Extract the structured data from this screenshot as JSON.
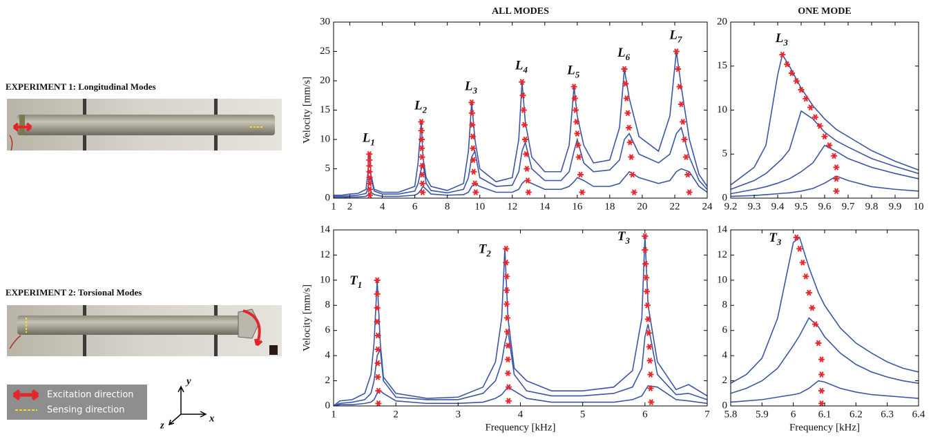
{
  "left_panel": {
    "experiment1": "EXPERIMENT 1: Longitudinal Modes",
    "experiment2": "EXPERIMENT 2: Torsional Modes",
    "legend": [
      "Excitation direction",
      "Sensing direction"
    ],
    "axes": {
      "y": "y",
      "x": "x",
      "z": "z"
    }
  },
  "chart_data": [
    {
      "type": "line",
      "title": "ALL MODES",
      "y_label": "Velocity [mm/s]",
      "xlim": [
        1,
        24
      ],
      "xticks": [
        1,
        2,
        4,
        6,
        8,
        10,
        12,
        14,
        16,
        18,
        20,
        22,
        24
      ],
      "ylim": [
        0,
        30
      ],
      "yticks": [
        0,
        5,
        10,
        15,
        20,
        25,
        30
      ],
      "x": [
        1,
        1.5,
        2,
        2.5,
        3,
        3.1,
        3.2,
        3.3,
        3.5,
        4,
        5,
        6,
        6.2,
        6.4,
        6.5,
        6.7,
        7,
        8,
        9,
        9.3,
        9.5,
        9.7,
        10,
        11,
        12,
        12.4,
        12.6,
        12.8,
        13.2,
        14,
        15,
        15.5,
        15.8,
        16,
        16.4,
        17,
        18,
        18.6,
        18.9,
        19.2,
        19.8,
        21,
        21.7,
        22.1,
        22.4,
        22.9,
        23.5,
        24
      ],
      "series": [
        {
          "color": "#3b55a5",
          "values": [
            0.5,
            0.5,
            0.7,
            0.8,
            1.5,
            4,
            7.5,
            4,
            1.5,
            1,
            1,
            2,
            6,
            13,
            7,
            3.5,
            2,
            1.3,
            2.5,
            8,
            16.3,
            10,
            5,
            2.8,
            3.5,
            10,
            19.8,
            13,
            7,
            4.5,
            4.5,
            9,
            19,
            14,
            9,
            6,
            6.5,
            12,
            22,
            17,
            10.5,
            8,
            14,
            25,
            19,
            10,
            4,
            2
          ]
        },
        {
          "color": "#3b55a5",
          "values": [
            0.3,
            0.3,
            0.4,
            0.5,
            0.8,
            1.5,
            3,
            3.5,
            1.2,
            0.7,
            0.7,
            1.2,
            2.5,
            5,
            6,
            2.5,
            1.3,
            0.9,
            1.5,
            3.5,
            7,
            8,
            3.5,
            2,
            2.2,
            4.5,
            8,
            9.5,
            5,
            3,
            3,
            4.5,
            8,
            10,
            6,
            4.5,
            4.8,
            6.5,
            10,
            11,
            7.5,
            6,
            7.5,
            11,
            12,
            7,
            3,
            1.5
          ]
        },
        {
          "color": "#3b55a5",
          "values": [
            0.1,
            0.1,
            0.2,
            0.2,
            0.3,
            0.5,
            0.8,
            1,
            0.6,
            0.3,
            0.3,
            0.5,
            0.8,
            1.5,
            2,
            1.5,
            0.7,
            0.5,
            0.6,
            1,
            2,
            2.5,
            2,
            1,
            1,
            1.5,
            2.5,
            3,
            2.5,
            1.5,
            1.5,
            2,
            2.8,
            3.5,
            3,
            2,
            2,
            2.5,
            3.5,
            4.5,
            3.5,
            2.5,
            3,
            4.5,
            5,
            4.5,
            2,
            1
          ]
        }
      ],
      "marker_color": "#e8262b",
      "modes": [
        {
          "label": "L",
          "sub": "1",
          "x": [
            3.2,
            3.2,
            3.21,
            3.21,
            3.22,
            3.22,
            3.23,
            3.23
          ],
          "values": [
            7.5,
            6.5,
            5.5,
            4.5,
            3.5,
            2.5,
            1.5,
            0.5
          ]
        },
        {
          "label": "L",
          "sub": "2",
          "x": [
            6.4,
            6.41,
            6.42,
            6.43,
            6.44,
            6.45,
            6.46,
            6.47,
            6.48
          ],
          "values": [
            13,
            11.5,
            10,
            8.5,
            7,
            5.5,
            4,
            2.5,
            1
          ]
        },
        {
          "label": "L",
          "sub": "3",
          "x": [
            9.5,
            9.52,
            9.54,
            9.56,
            9.58,
            9.6,
            9.62,
            9.7,
            9.75
          ],
          "values": [
            16.3,
            14.5,
            12.5,
            10.5,
            8.5,
            6.5,
            4.5,
            2.5,
            1
          ]
        },
        {
          "label": "L",
          "sub": "4",
          "x": [
            12.6,
            12.65,
            12.7,
            12.75,
            12.8,
            12.85,
            12.9,
            12.95,
            13
          ],
          "values": [
            19.8,
            17.5,
            15,
            12.5,
            10,
            7.5,
            5,
            3,
            1
          ]
        },
        {
          "label": "L",
          "sub": "5",
          "x": [
            15.8,
            15.85,
            15.9,
            15.95,
            16,
            16.05,
            16.1,
            16.2,
            16.3
          ],
          "values": [
            19,
            17,
            15,
            13,
            11,
            9,
            7,
            4,
            1
          ]
        },
        {
          "label": "L",
          "sub": "6",
          "x": [
            18.9,
            18.97,
            19.04,
            19.11,
            19.18,
            19.25,
            19.32,
            19.4,
            19.5
          ],
          "values": [
            22,
            19.5,
            17,
            14.5,
            12,
            9.5,
            7,
            4,
            1
          ]
        },
        {
          "label": "L",
          "sub": "7",
          "x": [
            22.1,
            22.2,
            22.3,
            22.4,
            22.5,
            22.6,
            22.7,
            22.8,
            22.9
          ],
          "values": [
            25,
            22,
            19,
            16,
            13,
            10,
            7,
            4,
            1
          ]
        }
      ]
    },
    {
      "type": "line",
      "title": "ONE MODE",
      "xlim": [
        9.2,
        10
      ],
      "xticks": [
        9.2,
        9.3,
        9.4,
        9.5,
        9.6,
        9.7,
        9.8,
        9.9,
        10
      ],
      "ylim": [
        0,
        20
      ],
      "yticks": [
        0,
        5,
        10,
        15,
        20
      ],
      "x": [
        9.2,
        9.3,
        9.35,
        9.4,
        9.42,
        9.45,
        9.5,
        9.55,
        9.6,
        9.65,
        9.7,
        9.8,
        9.9,
        10
      ],
      "series": [
        {
          "color": "#3b55a5",
          "values": [
            1.5,
            3.5,
            6,
            14,
            16.3,
            15,
            12.5,
            10.5,
            9,
            7.8,
            7,
            5.4,
            4.2,
            3.2
          ]
        },
        {
          "color": "#3b55a5",
          "values": [
            1,
            2,
            2.8,
            4,
            4.5,
            5.5,
            9.9,
            9,
            7.5,
            6.5,
            5.8,
            4.5,
            3.6,
            2.8
          ]
        },
        {
          "color": "#3b55a5",
          "values": [
            0.5,
            1,
            1.3,
            1.7,
            1.9,
            2.2,
            3,
            4,
            6,
            5.3,
            4.5,
            3.5,
            2.8,
            2.2
          ]
        },
        {
          "color": "#3b55a5",
          "values": [
            0.2,
            0.3,
            0.4,
            0.5,
            0.55,
            0.6,
            0.8,
            1.1,
            1.7,
            2.5,
            2,
            1.3,
            1,
            0.8
          ]
        }
      ],
      "marker_color": "#e8262b",
      "modes": [
        {
          "label": "L",
          "sub": "3",
          "x": [
            9.42,
            9.44,
            9.46,
            9.48,
            9.5,
            9.52,
            9.54,
            9.56,
            9.58,
            9.6,
            9.62,
            9.64,
            9.65,
            9.65,
            9.65
          ],
          "values": [
            16.3,
            15.2,
            14.2,
            13.3,
            12.3,
            11.3,
            10.3,
            9.2,
            8.2,
            7,
            6,
            4.8,
            3.5,
            2.2,
            0.8
          ]
        }
      ]
    },
    {
      "type": "line",
      "y_label": "Velocity [mm/s]",
      "x_label": "Frequency [kHz]",
      "xlim": [
        1,
        7
      ],
      "xticks": [
        1,
        2,
        3,
        4,
        5,
        6,
        7
      ],
      "ylim": [
        0,
        14
      ],
      "yticks": [
        0,
        2,
        4,
        6,
        8,
        10,
        12,
        14
      ],
      "x": [
        1,
        1.1,
        1.3,
        1.5,
        1.6,
        1.65,
        1.7,
        1.75,
        1.8,
        2,
        2.5,
        3,
        3.4,
        3.6,
        3.7,
        3.75,
        3.8,
        3.9,
        4.1,
        4.5,
        5,
        5.5,
        5.8,
        5.95,
        6,
        6.05,
        6.2,
        6.5,
        6.7,
        7
      ],
      "series": [
        {
          "color": "#3b55a5",
          "values": [
            0,
            0.4,
            0.5,
            1,
            2.5,
            5,
            10,
            5,
            2.3,
            1,
            0.6,
            0.7,
            1.5,
            3.5,
            7,
            12.5,
            7,
            3,
            2,
            1.2,
            1.2,
            1.5,
            2.8,
            7,
            13.5,
            8,
            3.5,
            1.3,
            1.7,
            0.8
          ]
        },
        {
          "color": "#3b55a5",
          "values": [
            0,
            0.2,
            0.3,
            0.5,
            1,
            2,
            4,
            4.5,
            2,
            0.7,
            0.5,
            0.5,
            1,
            2,
            3.5,
            5,
            6,
            2.5,
            1.2,
            0.8,
            0.8,
            1,
            1.5,
            3,
            5.5,
            6.5,
            2.5,
            0.9,
            1,
            0.5
          ]
        },
        {
          "color": "#3b55a5",
          "values": [
            0,
            0.1,
            0.1,
            0.2,
            0.3,
            0.5,
            1,
            1.2,
            1,
            0.4,
            0.2,
            0.2,
            0.3,
            0.6,
            0.9,
            1.2,
            1.5,
            1.2,
            0.6,
            0.3,
            0.3,
            0.3,
            0.5,
            0.8,
            1.2,
            1.6,
            1.5,
            0.5,
            0.4,
            0.2
          ]
        }
      ],
      "marker_color": "#e8262b",
      "modes": [
        {
          "label": "T",
          "sub": "1",
          "x": [
            1.7,
            1.7,
            1.7,
            1.7,
            1.71,
            1.71,
            1.71,
            1.71,
            1.72,
            1.72
          ],
          "values": [
            10,
            8.9,
            7.8,
            6.7,
            5.6,
            4.5,
            3.4,
            2.3,
            1.2,
            0.2
          ]
        },
        {
          "label": "T",
          "sub": "2",
          "x": [
            3.77,
            3.77,
            3.78,
            3.78,
            3.78,
            3.79,
            3.79,
            3.8,
            3.8,
            3.8,
            3.81,
            3.81
          ],
          "values": [
            12.5,
            11.4,
            10.3,
            9.2,
            8.1,
            7,
            5.9,
            4.8,
            3.7,
            2.6,
            1.5,
            0.4
          ]
        },
        {
          "label": "T",
          "sub": "3",
          "x": [
            6,
            6,
            6.01,
            6.02,
            6.03,
            6.04,
            6.05,
            6.06,
            6.07,
            6.08,
            6.09,
            6.09,
            6.1
          ],
          "values": [
            13.5,
            12.4,
            11.3,
            10.2,
            9.1,
            8,
            6.9,
            5.8,
            4.7,
            3.6,
            2.5,
            1.4,
            0.3
          ]
        }
      ]
    },
    {
      "type": "line",
      "x_label": "Frequency [kHz]",
      "xlim": [
        5.8,
        6.4
      ],
      "xticks": [
        5.8,
        5.9,
        6,
        6.1,
        6.2,
        6.3,
        6.4
      ],
      "ylim": [
        0,
        14
      ],
      "yticks": [
        0,
        2,
        4,
        6,
        8,
        10,
        12,
        14
      ],
      "x": [
        5.8,
        5.85,
        5.9,
        5.95,
        6,
        6.02,
        6.05,
        6.08,
        6.1,
        6.15,
        6.2,
        6.25,
        6.3,
        6.35,
        6.4
      ],
      "series": [
        {
          "color": "#3b55a5",
          "values": [
            1.8,
            2.5,
            3.8,
            7,
            13,
            13.4,
            11,
            9,
            8,
            6.2,
            5,
            4.2,
            3.5,
            3,
            2.7
          ]
        },
        {
          "color": "#3b55a5",
          "values": [
            1,
            1.4,
            2,
            3,
            4.8,
            5.6,
            7,
            6.3,
            5.5,
            4.2,
            3.3,
            2.7,
            2.3,
            2,
            1.8
          ]
        },
        {
          "color": "#3b55a5",
          "values": [
            0.3,
            0.4,
            0.5,
            0.7,
            0.9,
            1,
            1.4,
            2,
            1.9,
            1.4,
            1.1,
            0.9,
            0.8,
            0.7,
            0.6
          ]
        }
      ],
      "marker_color": "#e8262b",
      "modes": [
        {
          "label": "T",
          "sub": "3",
          "x": [
            6.01,
            6.02,
            6.03,
            6.04,
            6.05,
            6.06,
            6.07,
            6.08,
            6.09,
            6.09,
            6.09,
            6.09
          ],
          "values": [
            13.4,
            12.5,
            11.4,
            10.3,
            9,
            7.8,
            6.5,
            5,
            3.7,
            2.5,
            1.2,
            0.2
          ]
        }
      ]
    }
  ]
}
